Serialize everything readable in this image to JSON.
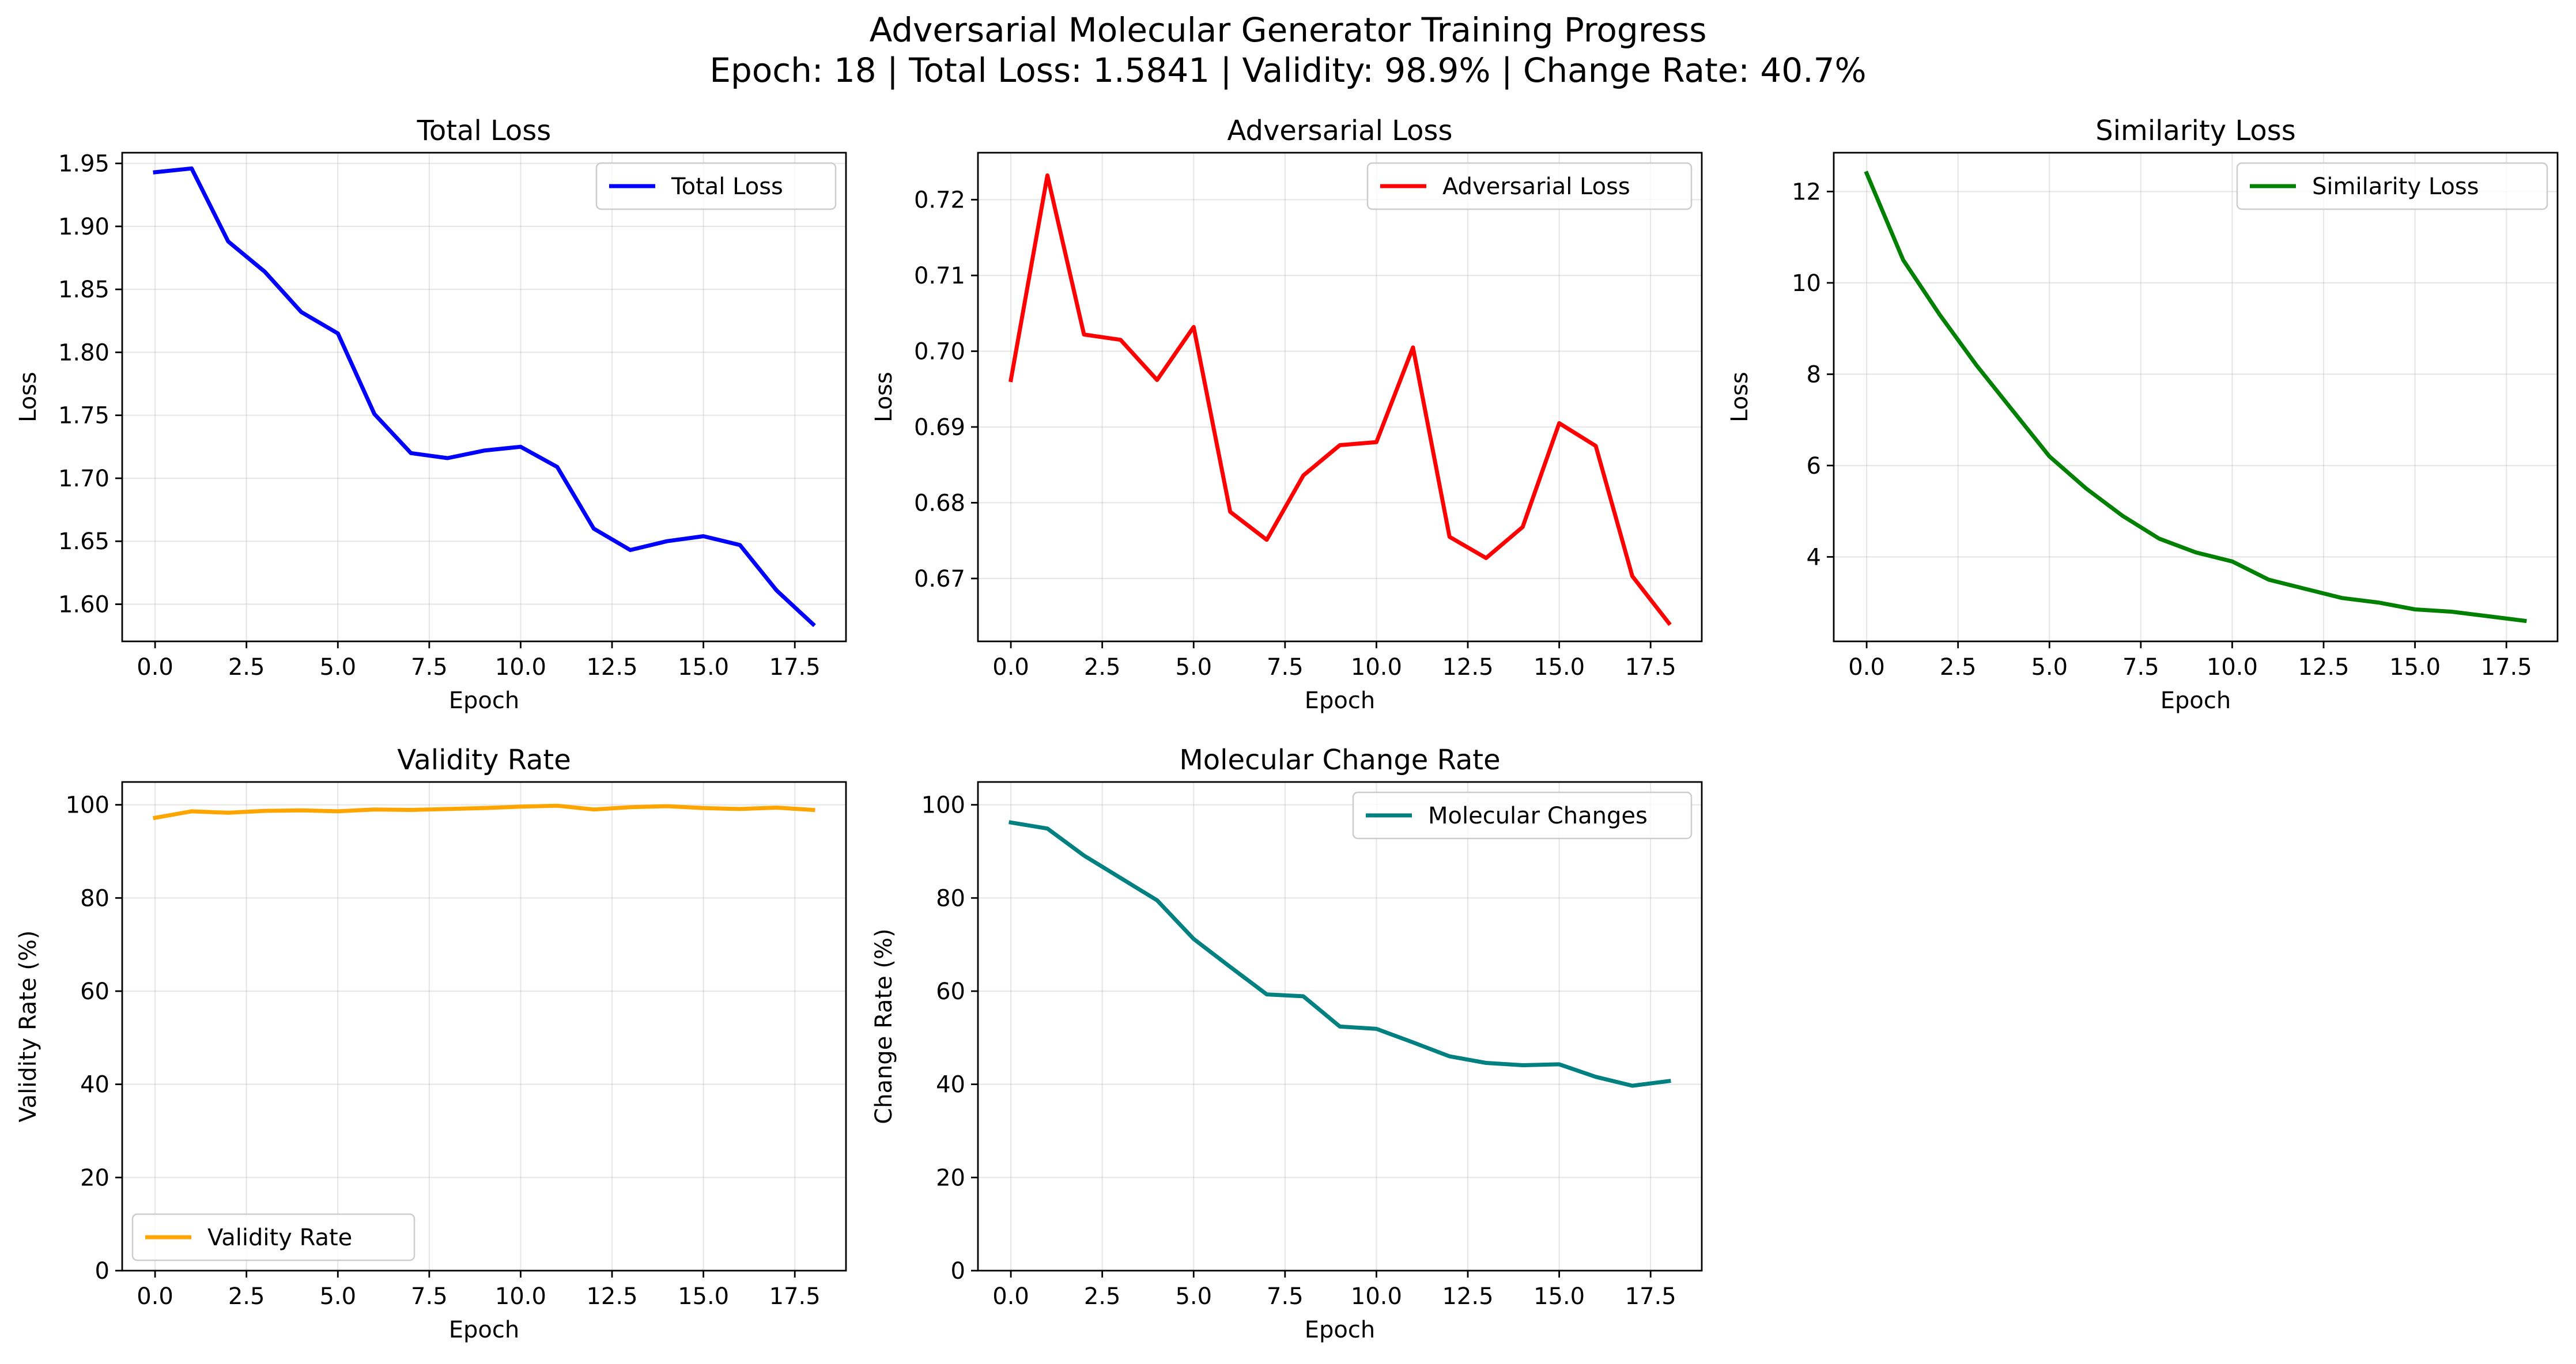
{
  "figure": {
    "suptitle_line1": "Adversarial Molecular Generator Training Progress",
    "suptitle_line2": "Epoch: 18 | Total Loss: 1.5841 | Validity: 98.9% | Change Rate: 40.7%"
  },
  "chart_data": [
    {
      "type": "line",
      "title": "Total Loss",
      "xlabel": "Epoch",
      "ylabel": "Loss",
      "xlim": [
        -0.9,
        18.9
      ],
      "ylim": [
        1.5705,
        1.9585
      ],
      "xticks": [
        0,
        2.5,
        5,
        7.5,
        10,
        12.5,
        15,
        17.5
      ],
      "xtick_labels": [
        "0.0",
        "2.5",
        "5.0",
        "7.5",
        "10.0",
        "12.5",
        "15.0",
        "17.5"
      ],
      "yticks": [
        1.6,
        1.65,
        1.7,
        1.75,
        1.8,
        1.85,
        1.9,
        1.95
      ],
      "ytick_labels": [
        "1.60",
        "1.65",
        "1.70",
        "1.75",
        "1.80",
        "1.85",
        "1.90",
        "1.95"
      ],
      "grid": true,
      "legend_position": "upper right",
      "series": [
        {
          "name": "Total Loss",
          "color": "#0000ff",
          "x": [
            0,
            1,
            2,
            3,
            4,
            5,
            6,
            7,
            8,
            9,
            10,
            11,
            12,
            13,
            14,
            15,
            16,
            17,
            18
          ],
          "y": [
            1.943,
            1.946,
            1.888,
            1.864,
            1.832,
            1.815,
            1.751,
            1.72,
            1.716,
            1.722,
            1.725,
            1.709,
            1.66,
            1.643,
            1.65,
            1.654,
            1.647,
            1.611,
            1.5841
          ]
        }
      ]
    },
    {
      "type": "line",
      "title": "Adversarial Loss",
      "xlabel": "Epoch",
      "ylabel": "Loss",
      "xlim": [
        -0.9,
        18.9
      ],
      "ylim": [
        0.6617,
        0.7262
      ],
      "xticks": [
        0,
        2.5,
        5,
        7.5,
        10,
        12.5,
        15,
        17.5
      ],
      "xtick_labels": [
        "0.0",
        "2.5",
        "5.0",
        "7.5",
        "10.0",
        "12.5",
        "15.0",
        "17.5"
      ],
      "yticks": [
        0.67,
        0.68,
        0.69,
        0.7,
        0.71,
        0.72
      ],
      "ytick_labels": [
        "0.67",
        "0.68",
        "0.69",
        "0.70",
        "0.71",
        "0.72"
      ],
      "grid": true,
      "legend_position": "upper right",
      "series": [
        {
          "name": "Adversarial Loss",
          "color": "#ff0000",
          "x": [
            0,
            1,
            2,
            3,
            4,
            5,
            6,
            7,
            8,
            9,
            10,
            11,
            12,
            13,
            14,
            15,
            16,
            17,
            18
          ],
          "y": [
            0.6962,
            0.7232,
            0.7022,
            0.7015,
            0.6962,
            0.7032,
            0.6788,
            0.6751,
            0.6836,
            0.6876,
            0.688,
            0.7005,
            0.6755,
            0.6727,
            0.6768,
            0.6905,
            0.6875,
            0.6703,
            0.6641
          ]
        }
      ]
    },
    {
      "type": "line",
      "title": "Similarity Loss",
      "xlabel": "Epoch",
      "ylabel": "Loss",
      "xlim": [
        -0.9,
        18.9
      ],
      "ylim": [
        2.15,
        12.85
      ],
      "xticks": [
        0,
        2.5,
        5,
        7.5,
        10,
        12.5,
        15,
        17.5
      ],
      "xtick_labels": [
        "0.0",
        "2.5",
        "5.0",
        "7.5",
        "10.0",
        "12.5",
        "15.0",
        "17.5"
      ],
      "yticks": [
        4,
        6,
        8,
        10,
        12
      ],
      "ytick_labels": [
        "4",
        "6",
        "8",
        "10",
        "12"
      ],
      "grid": true,
      "legend_position": "upper right",
      "series": [
        {
          "name": "Similarity Loss",
          "color": "#008000",
          "x": [
            0,
            1,
            2,
            3,
            4,
            5,
            6,
            7,
            8,
            9,
            10,
            11,
            12,
            13,
            14,
            15,
            16,
            17,
            18
          ],
          "y": [
            12.4,
            10.5,
            9.3,
            8.2,
            7.2,
            6.2,
            5.5,
            4.9,
            4.4,
            4.1,
            3.9,
            3.5,
            3.3,
            3.1,
            3.0,
            2.85,
            2.8,
            2.7,
            2.6
          ]
        }
      ]
    },
    {
      "type": "line",
      "title": "Validity Rate",
      "xlabel": "Epoch",
      "ylabel": "Validity Rate (%)",
      "xlim": [
        -0.9,
        18.9
      ],
      "ylim": [
        0,
        104.9
      ],
      "xticks": [
        0,
        2.5,
        5,
        7.5,
        10,
        12.5,
        15,
        17.5
      ],
      "xtick_labels": [
        "0.0",
        "2.5",
        "5.0",
        "7.5",
        "10.0",
        "12.5",
        "15.0",
        "17.5"
      ],
      "yticks": [
        0,
        20,
        40,
        60,
        80,
        100
      ],
      "ytick_labels": [
        "0",
        "20",
        "40",
        "60",
        "80",
        "100"
      ],
      "grid": true,
      "legend_position": "lower left",
      "series": [
        {
          "name": "Validity Rate",
          "color": "#ffa500",
          "x": [
            0,
            1,
            2,
            3,
            4,
            5,
            6,
            7,
            8,
            9,
            10,
            11,
            12,
            13,
            14,
            15,
            16,
            17,
            18
          ],
          "y": [
            97.2,
            98.6,
            98.3,
            98.7,
            98.8,
            98.6,
            99.0,
            98.9,
            99.1,
            99.3,
            99.6,
            99.8,
            99.0,
            99.5,
            99.7,
            99.3,
            99.1,
            99.4,
            98.9
          ]
        }
      ]
    },
    {
      "type": "line",
      "title": "Molecular Change Rate",
      "xlabel": "Epoch",
      "ylabel": "Change Rate (%)",
      "xlim": [
        -0.9,
        18.9
      ],
      "ylim": [
        0,
        104.9
      ],
      "xticks": [
        0,
        2.5,
        5,
        7.5,
        10,
        12.5,
        15,
        17.5
      ],
      "xtick_labels": [
        "0.0",
        "2.5",
        "5.0",
        "7.5",
        "10.0",
        "12.5",
        "15.0",
        "17.5"
      ],
      "yticks": [
        0,
        20,
        40,
        60,
        80,
        100
      ],
      "ytick_labels": [
        "0",
        "20",
        "40",
        "60",
        "80",
        "100"
      ],
      "grid": true,
      "legend_position": "upper right",
      "series": [
        {
          "name": "Molecular Changes",
          "color": "#008080",
          "x": [
            0,
            1,
            2,
            3,
            4,
            5,
            6,
            7,
            8,
            9,
            10,
            11,
            12,
            13,
            14,
            15,
            16,
            17,
            18
          ],
          "y": [
            96.2,
            94.9,
            89.1,
            84.3,
            79.5,
            71.2,
            65.2,
            59.3,
            58.9,
            52.4,
            51.9,
            49.0,
            46.0,
            44.6,
            44.1,
            44.3,
            41.6,
            39.7,
            40.7
          ]
        }
      ]
    }
  ]
}
